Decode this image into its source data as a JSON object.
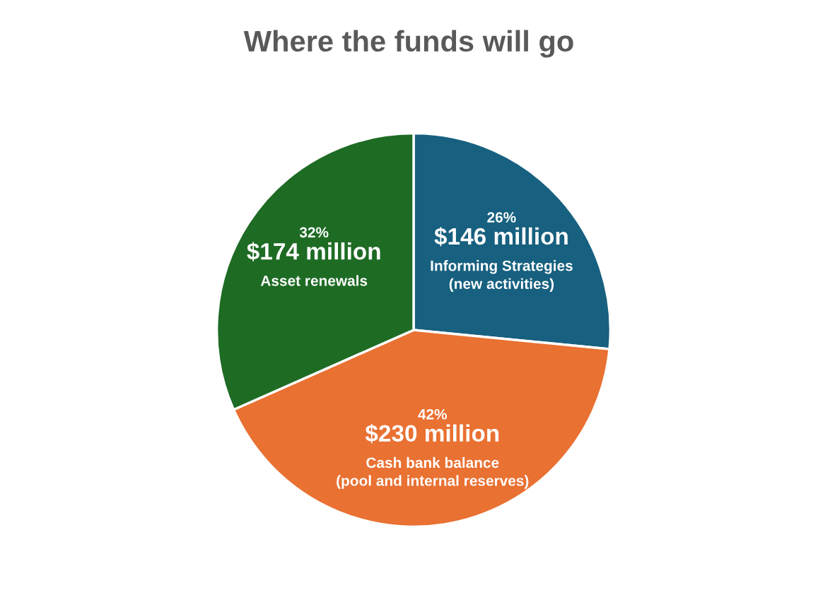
{
  "chart_data": {
    "type": "pie",
    "title": "Where the funds will go",
    "categories": [
      "Informing Strategies\n(new activities)",
      "Cash bank balance\n(pool and internal reserves)",
      "Asset renewals"
    ],
    "values": [
      146,
      230,
      174
    ],
    "colors": [
      "#17607f",
      "#e97132",
      "#1e6b24"
    ],
    "value_labels": [
      "$146 million",
      "$230 million",
      "$174 million"
    ],
    "annotations": [
      {
        "text": "26%",
        "x": "Informing Strategies\n(new activities)"
      },
      {
        "text": "42%",
        "x": "Cash bank balance\n(pool and internal reserves)"
      },
      {
        "text": "32%",
        "x": "Asset renewals"
      }
    ],
    "legend": false
  }
}
